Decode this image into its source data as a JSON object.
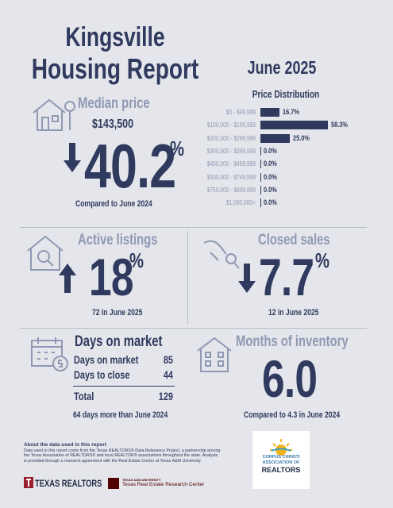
{
  "header": {
    "title": [
      "Kingsville",
      "Housing Report"
    ],
    "date": "June 2025"
  },
  "price_distribution": {
    "title": "Price Distribution",
    "categories": [
      "$0 - $99,999",
      "$100,000 - $199,999",
      "$200,000 - $299,999",
      "$300,000 - $399,999",
      "$400,000 - $499,999",
      "$500,000 - $749,999",
      "$750,000 - $999,999",
      "$1,000,000+"
    ],
    "values": [
      16.7,
      58.3,
      25.0,
      0.0,
      0.0,
      0.0,
      0.0,
      0.0
    ],
    "value_labels": [
      "16.7%",
      "58.3%",
      "25.0%",
      "0.0%",
      "0.0%",
      "0.0%",
      "0.0%",
      "0.0%"
    ],
    "color": "#2f3a5e"
  },
  "median_price": {
    "label": "Median price",
    "value": "$143,500",
    "change": "40.2",
    "unit": "%",
    "note": "Compared to June 2024"
  },
  "active_listings": {
    "label": "Active listings",
    "change": "18",
    "unit": "%",
    "note": "72 in June 2025"
  },
  "closed_sales": {
    "label": "Closed sales",
    "change": "7.7",
    "unit": "%",
    "note": "12 in June 2025"
  },
  "days_on_market": {
    "label": "Days on market",
    "rows": [
      [
        "Days on market",
        "85"
      ],
      [
        "Days to close",
        "44"
      ],
      [
        "Total",
        "129"
      ]
    ],
    "note": "64 days more than June 2024"
  },
  "months_of_inventory": {
    "label": "Months of inventory",
    "value": "6.0",
    "note": "Compared to 4.3 in June 2024"
  },
  "footer": {
    "about_title": "About the data used in this report",
    "about_text": "Data used in this report come from the Texas REALTORS® Data Relevance Project, a partnership among the Texas Association of REALTORS® and local REALTOR® associations throughout the state. Analysis is provided through a research agreement with the Real Estate Center at Texas A&M University.",
    "logo_texas_realtors": "TEXAS REALTORS",
    "logo_tamu": "TEXAS A&M UNIVERSITY",
    "logo_recenter": "Texas Real Estate Research Center",
    "logo_cc": [
      "CORPUS CHRISTI",
      "ASSOCIATION OF",
      "REALTORS"
    ]
  }
}
